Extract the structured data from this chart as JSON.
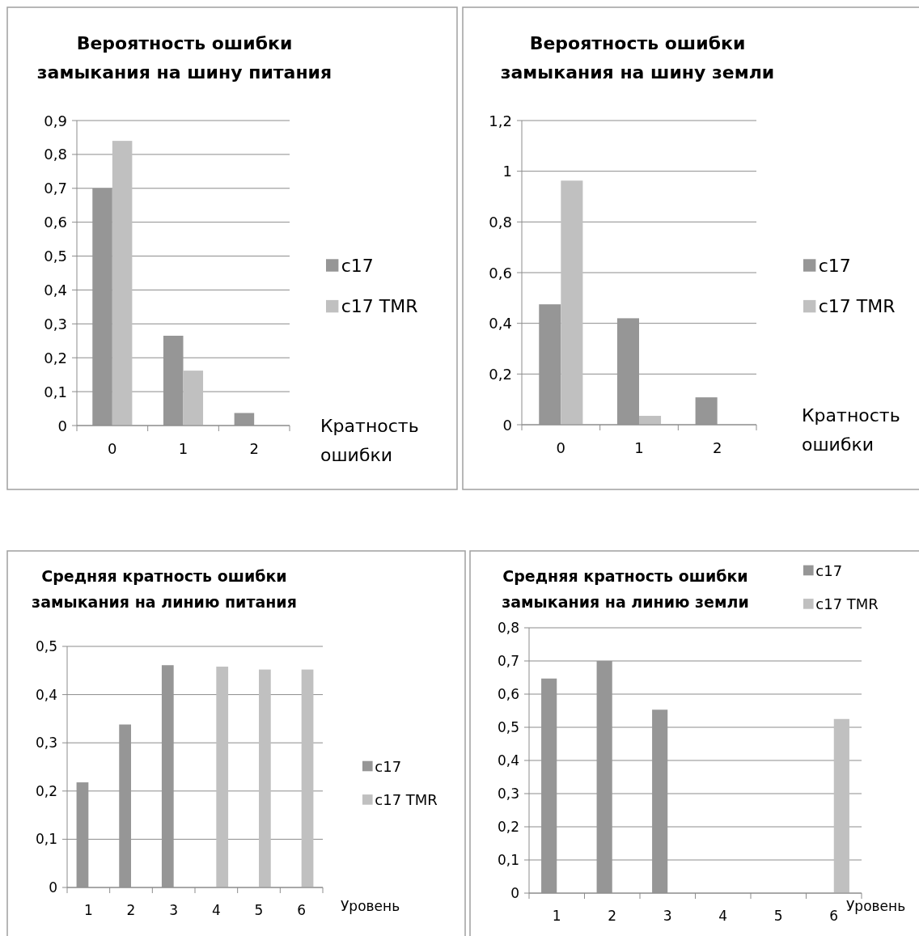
{
  "chart_data": [
    {
      "type": "bar",
      "title": "Вероятность ошибки замыкания на шину питания",
      "xlabel": "Кратность ошибки",
      "categories": [
        "0",
        "1",
        "2"
      ],
      "series": [
        {
          "name": "c17",
          "color": "#969696",
          "values": [
            0.7,
            0.265,
            0.037
          ]
        },
        {
          "name": "c17 TMR",
          "color": "#c0c0c0",
          "values": [
            0.84,
            0.162,
            null
          ]
        }
      ],
      "ylim": [
        0,
        0.9
      ],
      "yticks": [
        {
          "value": 0,
          "label": "0"
        },
        {
          "value": 0.1,
          "label": "0,1"
        },
        {
          "value": 0.2,
          "label": "0,2"
        },
        {
          "value": 0.3,
          "label": "0,3"
        },
        {
          "value": 0.4,
          "label": "0,4"
        },
        {
          "value": 0.5,
          "label": "0,5"
        },
        {
          "value": 0.6,
          "label": "0,6"
        },
        {
          "value": 0.7,
          "label": "0,7"
        },
        {
          "value": 0.8,
          "label": "0,8"
        },
        {
          "value": 0.9,
          "label": "0,9"
        }
      ],
      "grid": "y",
      "legend": "right"
    },
    {
      "type": "bar",
      "title": "Вероятность ошибки замыкания на шину земли",
      "xlabel": "Кратность ошибки",
      "categories": [
        "0",
        "1",
        "2"
      ],
      "series": [
        {
          "name": "c17",
          "color": "#969696",
          "values": [
            0.475,
            0.42,
            0.108
          ]
        },
        {
          "name": "c17 TMR",
          "color": "#c0c0c0",
          "values": [
            0.963,
            0.035,
            null
          ]
        }
      ],
      "ylim": [
        0,
        1.2
      ],
      "yticks": [
        {
          "value": 0,
          "label": "0"
        },
        {
          "value": 0.2,
          "label": "0,2"
        },
        {
          "value": 0.4,
          "label": "0,4"
        },
        {
          "value": 0.6,
          "label": "0,6"
        },
        {
          "value": 0.8,
          "label": "0,8"
        },
        {
          "value": 1,
          "label": "1"
        },
        {
          "value": 1.2,
          "label": "1,2"
        }
      ],
      "grid": "y",
      "legend": "right"
    },
    {
      "type": "bar",
      "title": "Средняя кратность ошибки замыкания на линию питания",
      "xlabel": "Уровень",
      "categories": [
        "1",
        "2",
        "3",
        "4",
        "5",
        "6"
      ],
      "series": [
        {
          "name": "c17",
          "color": "#969696",
          "values": [
            0.218,
            0.338,
            0.461,
            null,
            null,
            null
          ]
        },
        {
          "name": "c17 TMR",
          "color": "#c0c0c0",
          "values": [
            null,
            null,
            null,
            0.458,
            0.452,
            0.452
          ]
        }
      ],
      "ylim": [
        0,
        0.5
      ],
      "yticks": [
        {
          "value": 0,
          "label": "0"
        },
        {
          "value": 0.1,
          "label": "0,1"
        },
        {
          "value": 0.2,
          "label": "0,2"
        },
        {
          "value": 0.3,
          "label": "0,3"
        },
        {
          "value": 0.4,
          "label": "0,4"
        },
        {
          "value": 0.5,
          "label": "0,5"
        }
      ],
      "grid": "y",
      "legend": "right"
    },
    {
      "type": "bar",
      "title": "Средняя кратность ошибки замыкания на линию земли",
      "xlabel": "Уровень",
      "categories": [
        "1",
        "2",
        "3",
        "4",
        "5",
        "6"
      ],
      "series": [
        {
          "name": "c17",
          "color": "#969696",
          "values": [
            0.647,
            0.7,
            0.553,
            null,
            null,
            null
          ]
        },
        {
          "name": "c17 TMR",
          "color": "#c0c0c0",
          "values": [
            null,
            null,
            null,
            null,
            null,
            0.525
          ]
        }
      ],
      "ylim": [
        0,
        0.8
      ],
      "yticks": [
        {
          "value": 0,
          "label": "0"
        },
        {
          "value": 0.1,
          "label": "0,1"
        },
        {
          "value": 0.2,
          "label": "0,2"
        },
        {
          "value": 0.3,
          "label": "0,3"
        },
        {
          "value": 0.4,
          "label": "0,4"
        },
        {
          "value": 0.5,
          "label": "0,5"
        },
        {
          "value": 0.6,
          "label": "0,6"
        },
        {
          "value": 0.7,
          "label": "0,7"
        },
        {
          "value": 0.8,
          "label": "0,8"
        }
      ],
      "grid": "y",
      "legend": "top right"
    }
  ]
}
